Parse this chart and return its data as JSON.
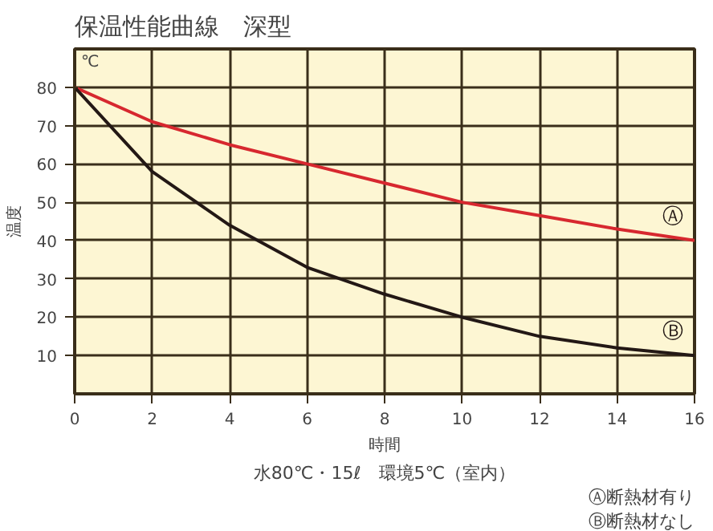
{
  "chart_data": {
    "type": "line",
    "title": "保温性能曲線　深型",
    "xlabel": "時間",
    "ylabel": "温度",
    "x": [
      0,
      2,
      4,
      6,
      8,
      10,
      12,
      14,
      16
    ],
    "xlim": [
      0,
      16
    ],
    "ylim": [
      0,
      90
    ],
    "xticks": [
      0,
      2,
      4,
      6,
      8,
      10,
      12,
      14,
      16
    ],
    "yticks": [
      10,
      20,
      30,
      40,
      50,
      60,
      70,
      80
    ],
    "series": [
      {
        "name": "Ⓐ",
        "color": "#d7282f",
        "values": [
          80,
          71,
          65,
          60,
          55,
          50,
          46.5,
          43,
          40
        ]
      },
      {
        "name": "Ⓑ",
        "color": "#231815",
        "values": [
          80,
          58,
          44,
          33,
          26,
          20,
          15,
          12,
          10
        ]
      }
    ],
    "annotations": [
      "℃",
      "水80℃・15ℓ　環境5℃（室内）",
      "Ⓐ断熱材有り",
      "Ⓑ断熱材なし"
    ],
    "grid": true,
    "legend": false,
    "marker": "none",
    "line_style": "solid"
  }
}
